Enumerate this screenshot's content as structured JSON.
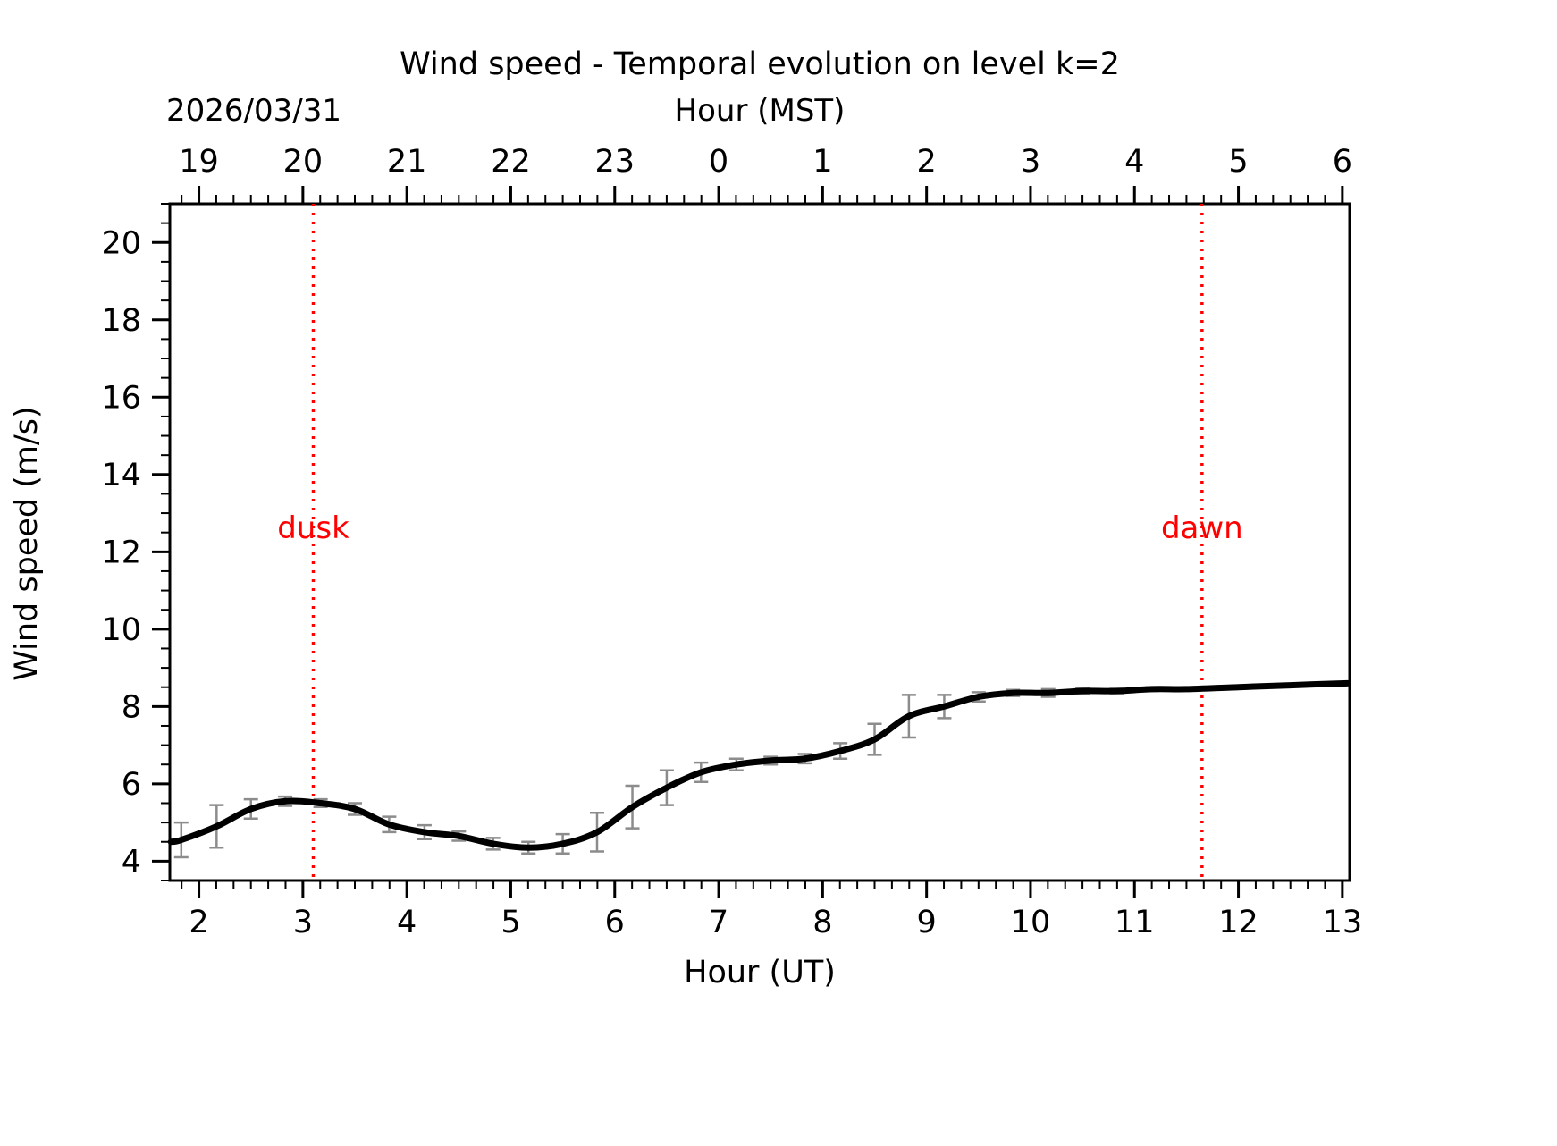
{
  "page": {
    "title": "Wind speed - Temporal evolution on level k=2",
    "date_label": "2026/03/31"
  },
  "chart_data": {
    "type": "line",
    "title": "Wind speed - Temporal evolution on level k=2",
    "date_label": "2026/03/31",
    "top_axis": {
      "label": "Hour (MST)",
      "tick_labels": [
        "19",
        "20",
        "21",
        "22",
        "23",
        "0",
        "1",
        "2",
        "3",
        "4",
        "5",
        "6"
      ],
      "tick_positions": [
        2,
        3,
        4,
        5,
        6,
        7,
        8,
        9,
        10,
        11,
        12,
        13
      ]
    },
    "bottom_axis": {
      "label": "Hour (UT)",
      "tick_labels": [
        "2",
        "3",
        "4",
        "5",
        "6",
        "7",
        "8",
        "9",
        "10",
        "11",
        "12",
        "13"
      ],
      "tick_positions": [
        2,
        3,
        4,
        5,
        6,
        7,
        8,
        9,
        10,
        11,
        12,
        13
      ]
    },
    "y_axis": {
      "label": "Wind speed (m/s)",
      "tick_labels": [
        "4",
        "6",
        "8",
        "10",
        "12",
        "14",
        "16",
        "18",
        "20"
      ],
      "tick_positions": [
        4,
        6,
        8,
        10,
        12,
        14,
        16,
        18,
        20
      ],
      "minor_step": 0.5
    },
    "xlim": [
      1.72,
      13.07
    ],
    "ylim": [
      3.5,
      21
    ],
    "x_minor_step": 0.1666667,
    "grid": false,
    "series": [
      {
        "name": "wind speed",
        "points": [
          {
            "x": 1.73,
            "y": 4.5,
            "err": 0
          },
          {
            "x": 1.83,
            "y": 4.55,
            "err": 0.45
          },
          {
            "x": 2.17,
            "y": 4.9,
            "err": 0.55
          },
          {
            "x": 2.5,
            "y": 5.35,
            "err": 0.25
          },
          {
            "x": 2.83,
            "y": 5.55,
            "err": 0.12
          },
          {
            "x": 3.17,
            "y": 5.5,
            "err": 0.1
          },
          {
            "x": 3.5,
            "y": 5.35,
            "err": 0.15
          },
          {
            "x": 3.83,
            "y": 4.95,
            "err": 0.2
          },
          {
            "x": 4.17,
            "y": 4.75,
            "err": 0.18
          },
          {
            "x": 4.5,
            "y": 4.65,
            "err": 0.12
          },
          {
            "x": 4.83,
            "y": 4.45,
            "err": 0.15
          },
          {
            "x": 5.17,
            "y": 4.35,
            "err": 0.15
          },
          {
            "x": 5.5,
            "y": 4.45,
            "err": 0.25
          },
          {
            "x": 5.83,
            "y": 4.75,
            "err": 0.5
          },
          {
            "x": 6.17,
            "y": 5.4,
            "err": 0.55
          },
          {
            "x": 6.5,
            "y": 5.9,
            "err": 0.45
          },
          {
            "x": 6.83,
            "y": 6.3,
            "err": 0.25
          },
          {
            "x": 7.17,
            "y": 6.5,
            "err": 0.15
          },
          {
            "x": 7.5,
            "y": 6.6,
            "err": 0.1
          },
          {
            "x": 7.83,
            "y": 6.65,
            "err": 0.12
          },
          {
            "x": 8.17,
            "y": 6.85,
            "err": 0.2
          },
          {
            "x": 8.5,
            "y": 7.15,
            "err": 0.4
          },
          {
            "x": 8.83,
            "y": 7.75,
            "err": 0.55
          },
          {
            "x": 9.17,
            "y": 8.0,
            "err": 0.3
          },
          {
            "x": 9.5,
            "y": 8.25,
            "err": 0.12
          },
          {
            "x": 9.83,
            "y": 8.35,
            "err": 0.08
          },
          {
            "x": 10.17,
            "y": 8.35,
            "err": 0.1
          },
          {
            "x": 10.5,
            "y": 8.4,
            "err": 0.08
          },
          {
            "x": 10.83,
            "y": 8.4,
            "err": 0.06
          },
          {
            "x": 11.17,
            "y": 8.45,
            "err": 0.05
          },
          {
            "x": 11.5,
            "y": 8.45,
            "err": 0
          },
          {
            "x": 12.0,
            "y": 8.5,
            "err": 0
          },
          {
            "x": 12.5,
            "y": 8.55,
            "err": 0
          },
          {
            "x": 13.05,
            "y": 8.6,
            "err": 0
          }
        ]
      }
    ],
    "events": [
      {
        "name": "dusk",
        "x": 3.1,
        "label_y": 12.35
      },
      {
        "name": "dawn",
        "x": 11.65,
        "label_y": 12.35
      }
    ],
    "colors": {
      "line": "#000000",
      "error_bar": "#8c8c8c",
      "event_line": "#ff0000",
      "event_text": "#ff0000",
      "axis": "#000000",
      "background": "#ffffff"
    },
    "legend": {
      "visible": false
    }
  }
}
